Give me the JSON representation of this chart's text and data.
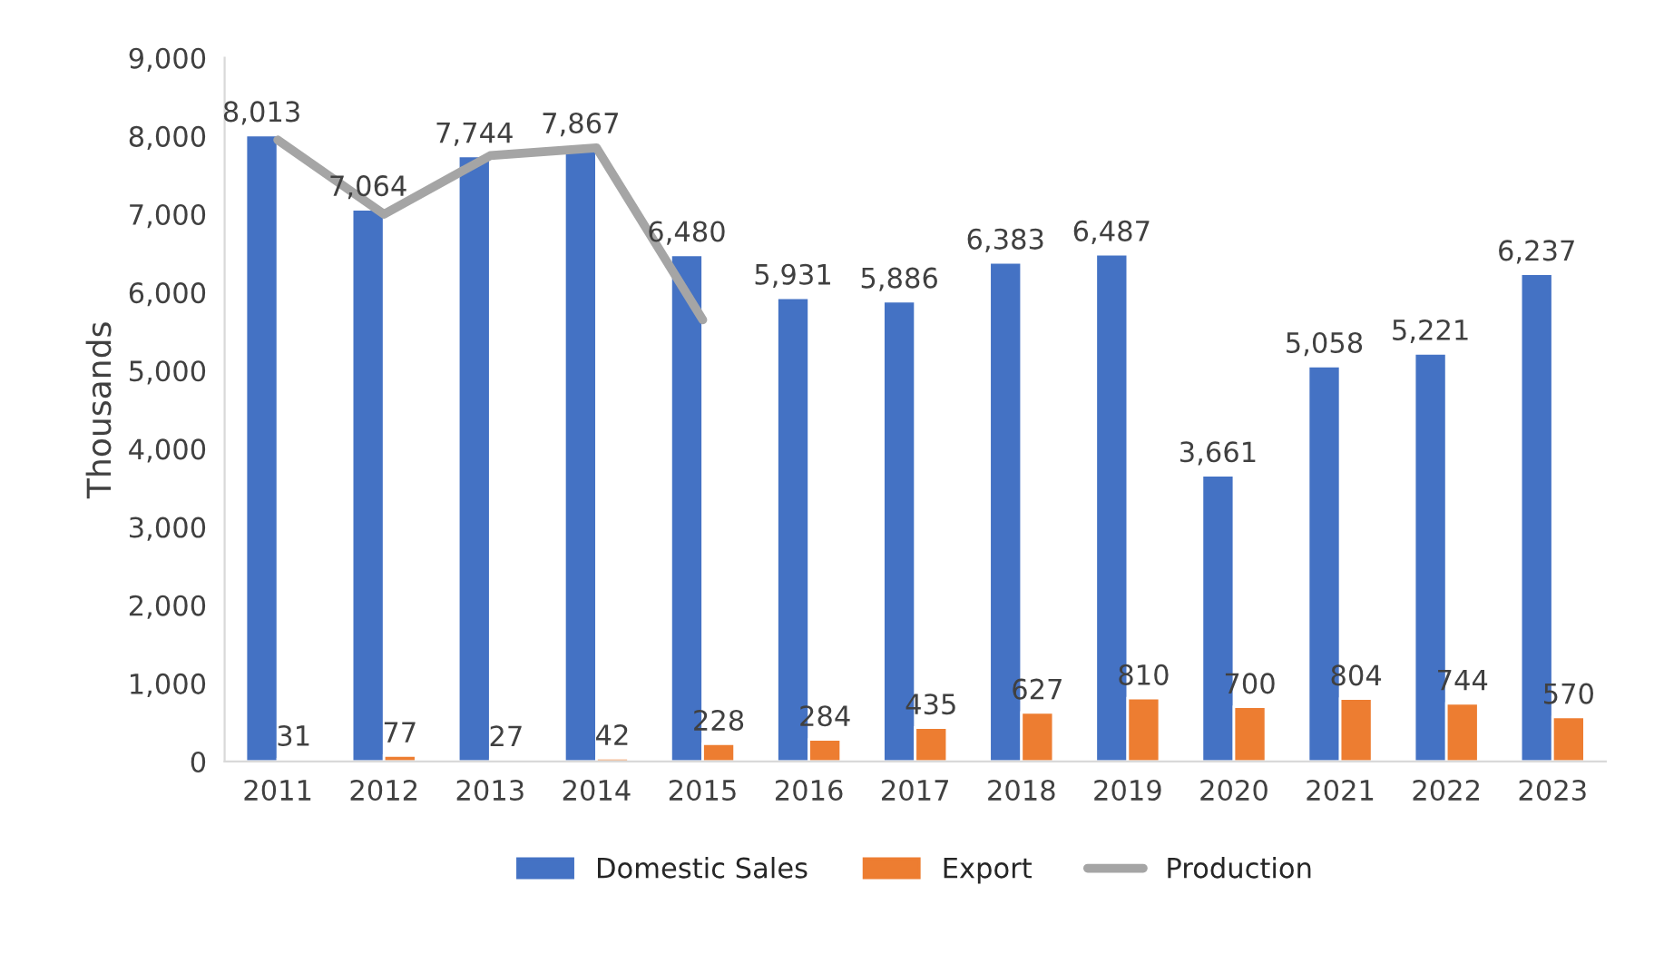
{
  "chart_data": {
    "type": "bar",
    "ylabel": "Thousands",
    "categories": [
      "2011",
      "2012",
      "2013",
      "2014",
      "2015",
      "2016",
      "2017",
      "2018",
      "2019",
      "2020",
      "2021",
      "2022",
      "2023"
    ],
    "series": [
      {
        "name": "Domestic Sales",
        "color": "#4472c4",
        "values": [
          8013,
          7064,
          7744,
          7867,
          6480,
          5931,
          5886,
          6383,
          6487,
          3661,
          5058,
          5221,
          6237
        ],
        "value_labels": [
          "8,013",
          "7,064",
          "7,744",
          "7,867",
          "6,480",
          "5,931",
          "5,886",
          "6,383",
          "6,487",
          "3,661",
          "5,058",
          "5,221",
          "6,237"
        ]
      },
      {
        "name": "Export",
        "color": "#ed7d31",
        "values": [
          31,
          77,
          27,
          42,
          228,
          284,
          435,
          627,
          810,
          700,
          804,
          744,
          570
        ],
        "value_labels": [
          "31",
          "77",
          "27",
          "42",
          "228",
          "284",
          "435",
          "627",
          "810",
          "700",
          "804",
          "744",
          "570"
        ]
      },
      {
        "name": "Production",
        "type": "line",
        "color": "#a5a5a5",
        "values": [
          7950,
          7000,
          7750,
          7850,
          5650,
          null,
          null,
          null,
          null,
          null,
          null,
          null,
          null
        ]
      }
    ],
    "ylim": [
      0,
      9000
    ],
    "yticks": [
      {
        "value": 0,
        "label": "0"
      },
      {
        "value": 1000,
        "label": "1,000"
      },
      {
        "value": 2000,
        "label": "2,000"
      },
      {
        "value": 3000,
        "label": "3,000"
      },
      {
        "value": 4000,
        "label": "4,000"
      },
      {
        "value": 5000,
        "label": "5,000"
      },
      {
        "value": 6000,
        "label": "6,000"
      },
      {
        "value": 7000,
        "label": "7,000"
      },
      {
        "value": 8000,
        "label": "8,000"
      },
      {
        "value": 9000,
        "label": "9,000"
      }
    ],
    "grid": false,
    "legend": "bottom",
    "marker": "none",
    "line_style": "solid"
  }
}
